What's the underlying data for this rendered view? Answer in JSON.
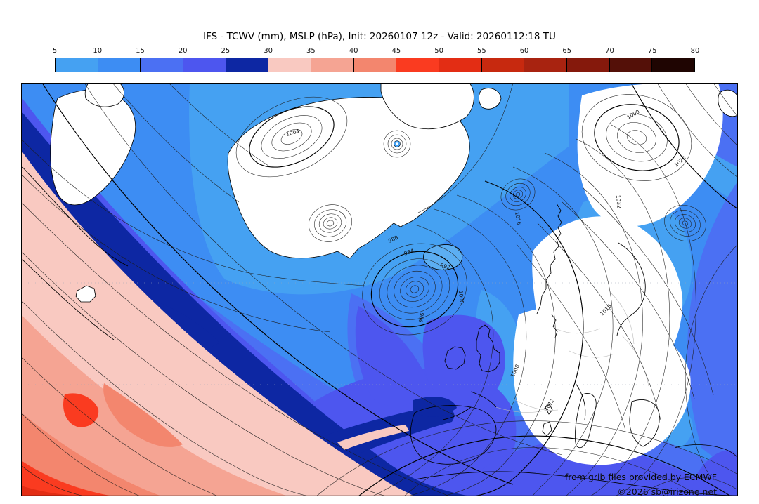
{
  "header": {
    "title": "IFS - TCWV (mm), MSLP (hPa), Init: 20260107 12z - Valid: 20260112:18 TU"
  },
  "colorbar": {
    "ticks": [
      "5",
      "10",
      "15",
      "20",
      "25",
      "30",
      "35",
      "40",
      "45",
      "50",
      "55",
      "60",
      "65",
      "70",
      "75",
      "80"
    ],
    "segments": [
      {
        "from": 5,
        "to": 10,
        "color": "#45a1f2"
      },
      {
        "from": 10,
        "to": 15,
        "color": "#3d8df3"
      },
      {
        "from": 15,
        "to": 20,
        "color": "#4b70f3"
      },
      {
        "from": 20,
        "to": 25,
        "color": "#4d56ef"
      },
      {
        "from": 25,
        "to": 30,
        "color": "#0d27a3"
      },
      {
        "from": 30,
        "to": 35,
        "color": "#f9c9c1"
      },
      {
        "from": 35,
        "to": 40,
        "color": "#f5a493"
      },
      {
        "from": 40,
        "to": 45,
        "color": "#f3866e"
      },
      {
        "from": 45,
        "to": 50,
        "color": "#fa3b20"
      },
      {
        "from": 50,
        "to": 55,
        "color": "#e32d14"
      },
      {
        "from": 55,
        "to": 60,
        "color": "#c7290f"
      },
      {
        "from": 60,
        "to": 65,
        "color": "#a82310"
      },
      {
        "from": 65,
        "to": 70,
        "color": "#85190c"
      },
      {
        "from": 70,
        "to": 75,
        "color": "#541008"
      },
      {
        "from": 75,
        "to": 80,
        "color": "#1f0502"
      }
    ]
  },
  "map": {
    "attribution_line1": "from grib files provided by ECMWF",
    "attribution_line2": "©2026 sb@irizone.net",
    "isobar_labels": [
      {
        "text": "984"
      },
      {
        "text": "988"
      },
      {
        "text": "992"
      },
      {
        "text": "996"
      },
      {
        "text": "1000"
      },
      {
        "text": "1004"
      },
      {
        "text": "1008"
      },
      {
        "text": "1012"
      },
      {
        "text": "1016"
      },
      {
        "text": "1032"
      },
      {
        "text": "1016"
      },
      {
        "text": "1000"
      },
      {
        "text": "1020"
      }
    ]
  }
}
